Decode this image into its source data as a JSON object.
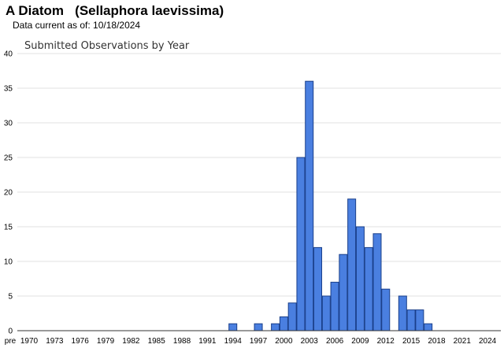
{
  "header": {
    "title": "A Diatom   (Sellaphora laevissima)",
    "subtitle": "Data current as of: 10/18/2024"
  },
  "chart_data": {
    "type": "bar",
    "title": "Submitted Observations by Year",
    "xlabel": "",
    "ylabel": "",
    "ylim": [
      0,
      40
    ],
    "yticks": [
      0,
      5,
      10,
      15,
      20,
      25,
      30,
      35,
      40
    ],
    "grid": true,
    "legend": "none",
    "bar_color": "#4a7fe0",
    "bar_edge_color": "#1a3f8a",
    "xtick_labels": [
      "pre",
      "1970",
      "1973",
      "1976",
      "1979",
      "1982",
      "1985",
      "1988",
      "1991",
      "1994",
      "1997",
      "2000",
      "2003",
      "2006",
      "2009",
      "2012",
      "2015",
      "2018",
      "2021",
      "2024"
    ],
    "categories": [
      "pre",
      "1970",
      "1971",
      "1972",
      "1973",
      "1974",
      "1975",
      "1976",
      "1977",
      "1978",
      "1979",
      "1980",
      "1981",
      "1982",
      "1983",
      "1984",
      "1985",
      "1986",
      "1987",
      "1988",
      "1989",
      "1990",
      "1991",
      "1992",
      "1993",
      "1994",
      "1995",
      "1996",
      "1997",
      "1998",
      "1999",
      "2000",
      "2001",
      "2002",
      "2003",
      "2004",
      "2005",
      "2006",
      "2007",
      "2008",
      "2009",
      "2010",
      "2011",
      "2012",
      "2013",
      "2014",
      "2015",
      "2016",
      "2017",
      "2018",
      "2019",
      "2020",
      "2021",
      "2022",
      "2023",
      "2024"
    ],
    "values": [
      0,
      0,
      0,
      0,
      0,
      0,
      0,
      0,
      0,
      0,
      0,
      0,
      0,
      0,
      0,
      0,
      0,
      0,
      0,
      0,
      0,
      0,
      0,
      0,
      0,
      1,
      0,
      0,
      1,
      0,
      1,
      2,
      4,
      25,
      36,
      12,
      5,
      7,
      11,
      19,
      15,
      12,
      14,
      6,
      0,
      5,
      3,
      3,
      1,
      0,
      0,
      0,
      0,
      0,
      0,
      0
    ]
  }
}
